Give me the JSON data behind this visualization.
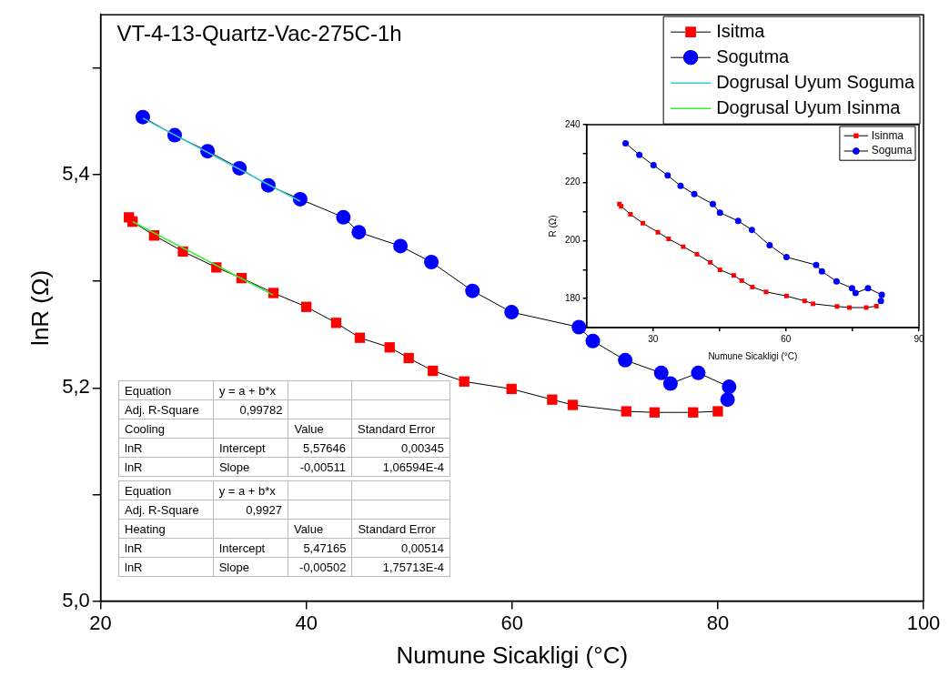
{
  "chart_data": [
    {
      "type": "line",
      "title": "VT-4-13-Quartz-Vac-275C-1h",
      "xlabel": "Numune Sicakligi (°C)",
      "ylabel": "lnR (Ω)",
      "xlim": [
        20,
        100
      ],
      "xticks": [
        20,
        40,
        60,
        80,
        100
      ],
      "ylim": [
        5.0,
        5.55
      ],
      "yticks": [
        {
          "value": 5.0,
          "label": "5,0"
        },
        {
          "value": 5.1,
          "label": null
        },
        {
          "value": 5.2,
          "label": "5,2"
        },
        {
          "value": 5.3,
          "label": null
        },
        {
          "value": 5.4,
          "label": "5,4"
        },
        {
          "value": 5.5,
          "label": null
        }
      ],
      "grid": false,
      "legend": "top right",
      "series": [
        {
          "name": "Isitma",
          "color": "#ff0000",
          "marker": "square",
          "x": [
            22.75,
            23.1,
            25.2,
            28.0,
            31.25,
            33.7,
            36.8,
            40.0,
            42.9,
            45.2,
            48.1,
            49.95,
            52.3,
            55.35,
            59.95,
            63.9,
            65.9,
            71.1,
            73.85,
            77.6,
            80.0
          ],
          "values": [
            5.36,
            5.356,
            5.343,
            5.328,
            5.313,
            5.303,
            5.289,
            5.276,
            5.261,
            5.247,
            5.238,
            5.228,
            5.216,
            5.206,
            5.199,
            5.189,
            5.184,
            5.178,
            5.177,
            5.177,
            5.178
          ]
        },
        {
          "name": "Sogutma",
          "color": "#0000ff",
          "marker": "circle",
          "x": [
            24.1,
            27.2,
            30.4,
            33.5,
            36.3,
            39.4,
            43.6,
            45.1,
            49.15,
            52.15,
            56.15,
            59.95,
            66.5,
            67.85,
            71.0,
            74.5,
            75.4,
            78.1,
            81.1,
            80.95
          ],
          "values": [
            5.454,
            5.437,
            5.422,
            5.406,
            5.39,
            5.377,
            5.36,
            5.346,
            5.333,
            5.318,
            5.291,
            5.271,
            5.257,
            5.244,
            5.226,
            5.214,
            5.204,
            5.214,
            5.201,
            5.189
          ]
        },
        {
          "name": "Dogrusal Uyum Soguma",
          "color": "#33cccc",
          "marker": "none",
          "x": [
            24.1,
            39.4
          ],
          "values": [
            5.453,
            5.375
          ]
        },
        {
          "name": "Dogrusal Uyum Isinma",
          "color": "#33ee33",
          "marker": "none",
          "x": [
            23.1,
            36.8
          ],
          "values": [
            5.356,
            5.287
          ]
        }
      ],
      "annotations": [
        "Equation",
        "y = a + b*x",
        "Adj. R-Square",
        "0,99782",
        "Cooling",
        "Value",
        "Standard Error",
        "lnR",
        "Intercept",
        "5,57646",
        "0,00345",
        "lnR",
        "Slope",
        "-0,00511",
        "1,06594E-4",
        "Equation",
        "y = a + b*x",
        "Adj. R-Square",
        "0,9927",
        "Heating",
        "Value",
        "Standard Error",
        "lnR",
        "Intercept",
        "5,47165",
        "0,00514",
        "lnR",
        "Slope",
        "-0,00502",
        "1,75713E-4"
      ]
    },
    {
      "type": "line",
      "xlabel": "Numune Sicakligi (°C)",
      "ylabel": "R (Ω)",
      "xlim": [
        15,
        90
      ],
      "xticks": [
        30,
        {
          "value": 45,
          "label": null
        },
        60,
        {
          "value": 75,
          "label": null
        },
        90
      ],
      "ylim": [
        170,
        240
      ],
      "yticks": [
        180,
        {
          "value": 190,
          "label": null
        },
        200,
        {
          "value": 210,
          "label": null
        },
        220,
        {
          "value": 230,
          "label": null
        },
        240
      ],
      "grid": false,
      "legend": "top right",
      "series": [
        {
          "name": "Isinma",
          "color": "#ff0000",
          "marker": "square",
          "x": [
            22.4,
            22.8,
            24.9,
            27.7,
            31.1,
            33.5,
            36.8,
            39.9,
            42.9,
            45.1,
            48.2,
            50.0,
            52.4,
            55.5,
            60.1,
            64.2,
            66.1,
            71.5,
            74.3,
            78.1,
            80.4
          ],
          "values": [
            212.6,
            211.8,
            209.1,
            206.0,
            202.9,
            200.6,
            197.9,
            195.3,
            192.5,
            189.9,
            188.0,
            186.2,
            184.0,
            182.3,
            180.9,
            179.2,
            178.2,
            177.3,
            176.9,
            176.9,
            177.4
          ]
        },
        {
          "name": "Soguma",
          "color": "#0000ff",
          "marker": "circle",
          "x": [
            23.8,
            26.9,
            30.1,
            33.3,
            36.2,
            39.3,
            43.5,
            45.1,
            49.2,
            52.3,
            56.3,
            60.1,
            66.8,
            68.1,
            71.4,
            74.9,
            75.7,
            78.5,
            81.6,
            81.4
          ],
          "values": [
            233.6,
            229.6,
            226.0,
            222.5,
            218.9,
            216.1,
            212.6,
            209.6,
            206.8,
            203.7,
            198.4,
            194.3,
            191.6,
            189.4,
            185.9,
            183.6,
            181.9,
            183.6,
            181.3,
            179.2
          ]
        }
      ]
    }
  ]
}
